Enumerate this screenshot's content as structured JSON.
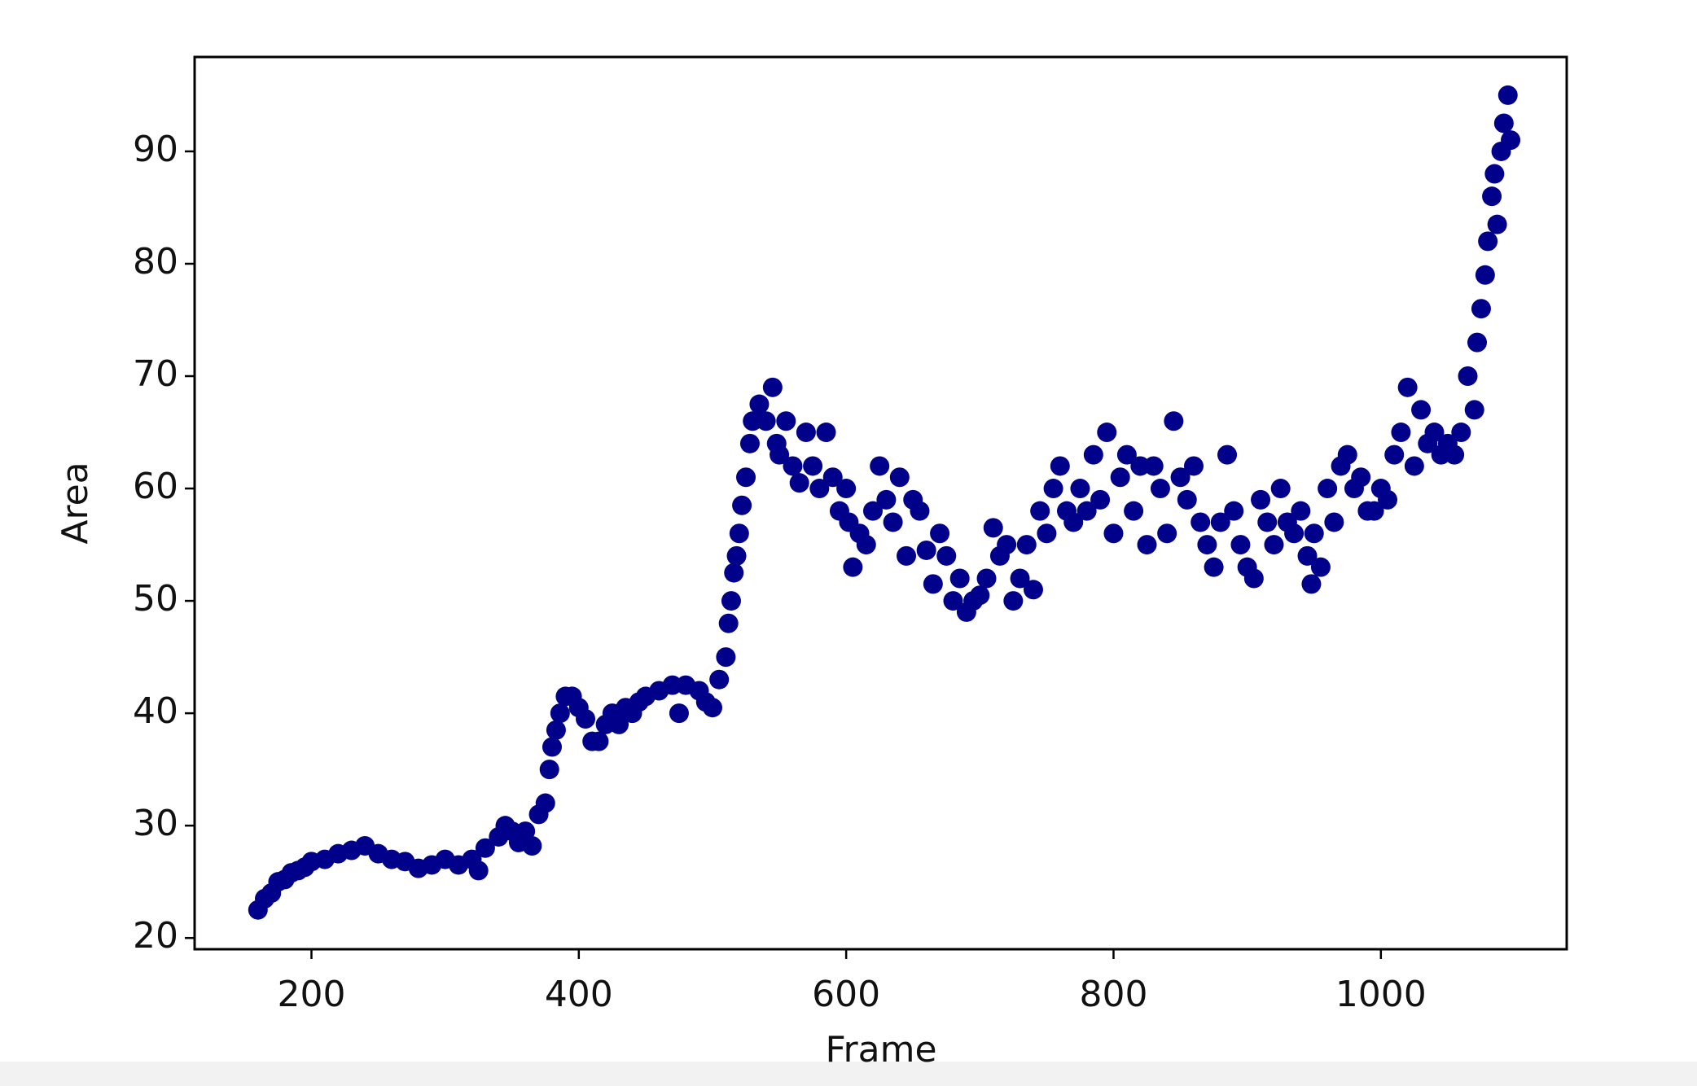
{
  "chart_data": {
    "type": "scatter",
    "xlabel": "Frame",
    "ylabel": "Area",
    "color": "#00008b",
    "x": [
      160,
      165,
      170,
      175,
      180,
      185,
      190,
      195,
      200,
      210,
      220,
      230,
      240,
      250,
      260,
      270,
      280,
      290,
      300,
      310,
      320,
      325,
      330,
      340,
      345,
      350,
      355,
      360,
      365,
      370,
      375,
      378,
      380,
      383,
      386,
      390,
      395,
      400,
      405,
      410,
      415,
      420,
      425,
      430,
      435,
      440,
      445,
      450,
      460,
      470,
      475,
      480,
      490,
      495,
      500,
      505,
      510,
      512,
      514,
      516,
      518,
      520,
      522,
      525,
      528,
      530,
      535,
      540,
      545,
      548,
      550,
      555,
      560,
      565,
      570,
      575,
      580,
      585,
      590,
      595,
      600,
      602,
      605,
      610,
      615,
      620,
      625,
      630,
      635,
      640,
      645,
      650,
      655,
      660,
      665,
      670,
      675,
      680,
      685,
      690,
      695,
      700,
      705,
      710,
      715,
      720,
      725,
      730,
      735,
      740,
      745,
      750,
      755,
      760,
      765,
      770,
      775,
      780,
      785,
      790,
      795,
      800,
      805,
      810,
      815,
      820,
      825,
      830,
      835,
      840,
      845,
      850,
      855,
      860,
      865,
      870,
      875,
      880,
      885,
      890,
      895,
      900,
      905,
      910,
      915,
      920,
      925,
      930,
      935,
      940,
      945,
      948,
      950,
      955,
      960,
      965,
      970,
      975,
      980,
      985,
      990,
      995,
      1000,
      1005,
      1010,
      1015,
      1020,
      1025,
      1030,
      1035,
      1040,
      1045,
      1050,
      1055,
      1060,
      1065,
      1070,
      1072,
      1075,
      1078,
      1080,
      1083,
      1085,
      1087,
      1090,
      1092,
      1095,
      1097
    ],
    "values": [
      22.5,
      23.5,
      24,
      25,
      25.2,
      25.8,
      26,
      26.3,
      26.8,
      27,
      27.5,
      27.8,
      28.2,
      27.5,
      27,
      26.8,
      26.2,
      26.5,
      27,
      26.5,
      27,
      26,
      28,
      29,
      30,
      29.5,
      28.5,
      29.5,
      28.2,
      31,
      32,
      35,
      37,
      38.5,
      40,
      41.5,
      41.5,
      40.5,
      39.5,
      37.5,
      37.5,
      39,
      40,
      39,
      40.5,
      40,
      41,
      41.5,
      42,
      42.5,
      40,
      42.5,
      42,
      41,
      40.5,
      43,
      45,
      48,
      50,
      52.5,
      54,
      56,
      58.5,
      61,
      64,
      66,
      67.5,
      66,
      69,
      64,
      63,
      66,
      62,
      60.5,
      65,
      62,
      60,
      65,
      61,
      58,
      60,
      57,
      53,
      56,
      55,
      58,
      62,
      59,
      57,
      61,
      54,
      59,
      58,
      54.5,
      51.5,
      56,
      54,
      50,
      52,
      49,
      50,
      50.5,
      52,
      56.5,
      54,
      55,
      50,
      52,
      55,
      51,
      58,
      56,
      60,
      62,
      58,
      57,
      60,
      58,
      63,
      59,
      65,
      56,
      61,
      63,
      58,
      62,
      55,
      62,
      60,
      56,
      66,
      61,
      59,
      62,
      57,
      55,
      53,
      57,
      63,
      58,
      55,
      53,
      52,
      59,
      57,
      55,
      60,
      57,
      56,
      58,
      54,
      51.5,
      56,
      53,
      60,
      57,
      62,
      63,
      60,
      61,
      58,
      58,
      60,
      59,
      63,
      65,
      69,
      62,
      67,
      64,
      65,
      63,
      64,
      63,
      65,
      70,
      67,
      73,
      76,
      79,
      82,
      86,
      88,
      83.5,
      90,
      92.5,
      95,
      91
    ],
    "xlim": [
      112.6,
      1139
    ],
    "ylim": [
      19,
      98.4
    ],
    "xticks": [
      200,
      400,
      600,
      800,
      1000
    ],
    "yticks": [
      20,
      30,
      40,
      50,
      60,
      70,
      80,
      90
    ]
  }
}
